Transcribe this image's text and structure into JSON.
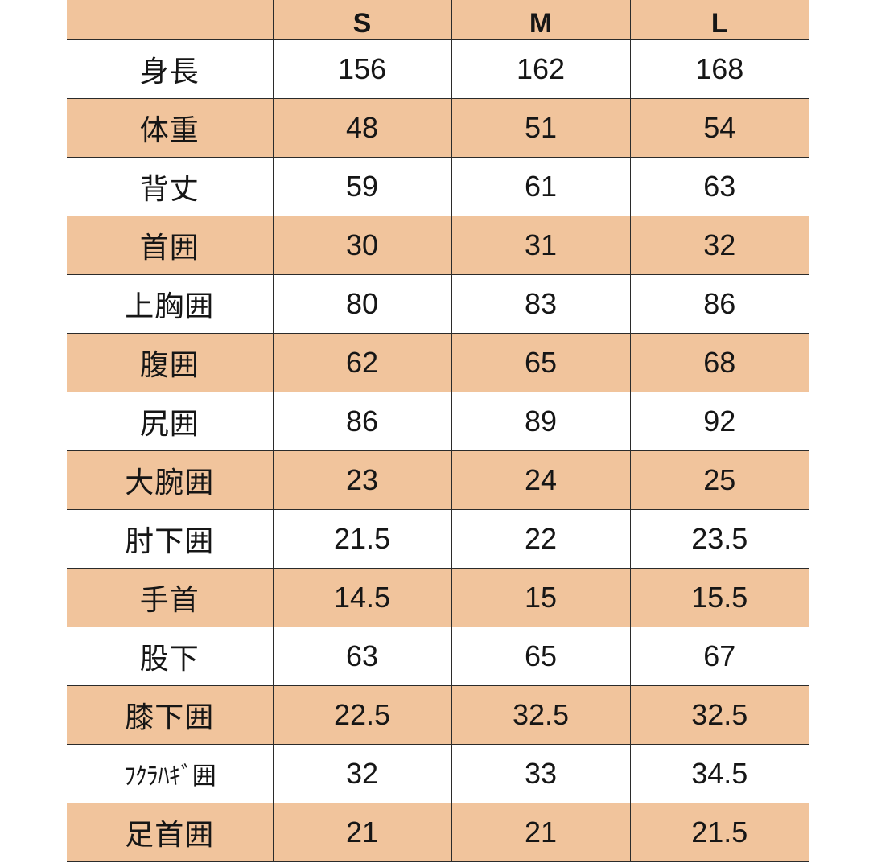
{
  "table": {
    "columns": [
      "S",
      "M",
      "L"
    ],
    "rows": [
      {
        "label": "身長",
        "values": [
          "156",
          "162",
          "168"
        ]
      },
      {
        "label": "体重",
        "values": [
          "48",
          "51",
          "54"
        ]
      },
      {
        "label": "背丈",
        "values": [
          "59",
          "61",
          "63"
        ]
      },
      {
        "label": "首囲",
        "values": [
          "30",
          "31",
          "32"
        ]
      },
      {
        "label": "上胸囲",
        "values": [
          "80",
          "83",
          "86"
        ]
      },
      {
        "label": "腹囲",
        "values": [
          "62",
          "65",
          "68"
        ]
      },
      {
        "label": "尻囲",
        "values": [
          "86",
          "89",
          "92"
        ]
      },
      {
        "label": "大腕囲",
        "values": [
          "23",
          "24",
          "25"
        ]
      },
      {
        "label": "肘下囲",
        "values": [
          "21.5",
          "22",
          "23.5"
        ]
      },
      {
        "label": "手首",
        "values": [
          "14.5",
          "15",
          "15.5"
        ]
      },
      {
        "label": "股下",
        "values": [
          "63",
          "65",
          "67"
        ]
      },
      {
        "label": "膝下囲",
        "values": [
          "22.5",
          "32.5",
          "32.5"
        ]
      },
      {
        "label": "ﾌｸﾗﾊｷﾞ囲",
        "values": [
          "32",
          "33",
          "34.5"
        ]
      },
      {
        "label": "足首囲",
        "values": [
          "21",
          "21",
          "21.5"
        ]
      }
    ]
  },
  "colors": {
    "row_shade": "#f1c49c",
    "row_plain": "#ffffff",
    "border": "#2b2b2b",
    "text": "#161616"
  }
}
